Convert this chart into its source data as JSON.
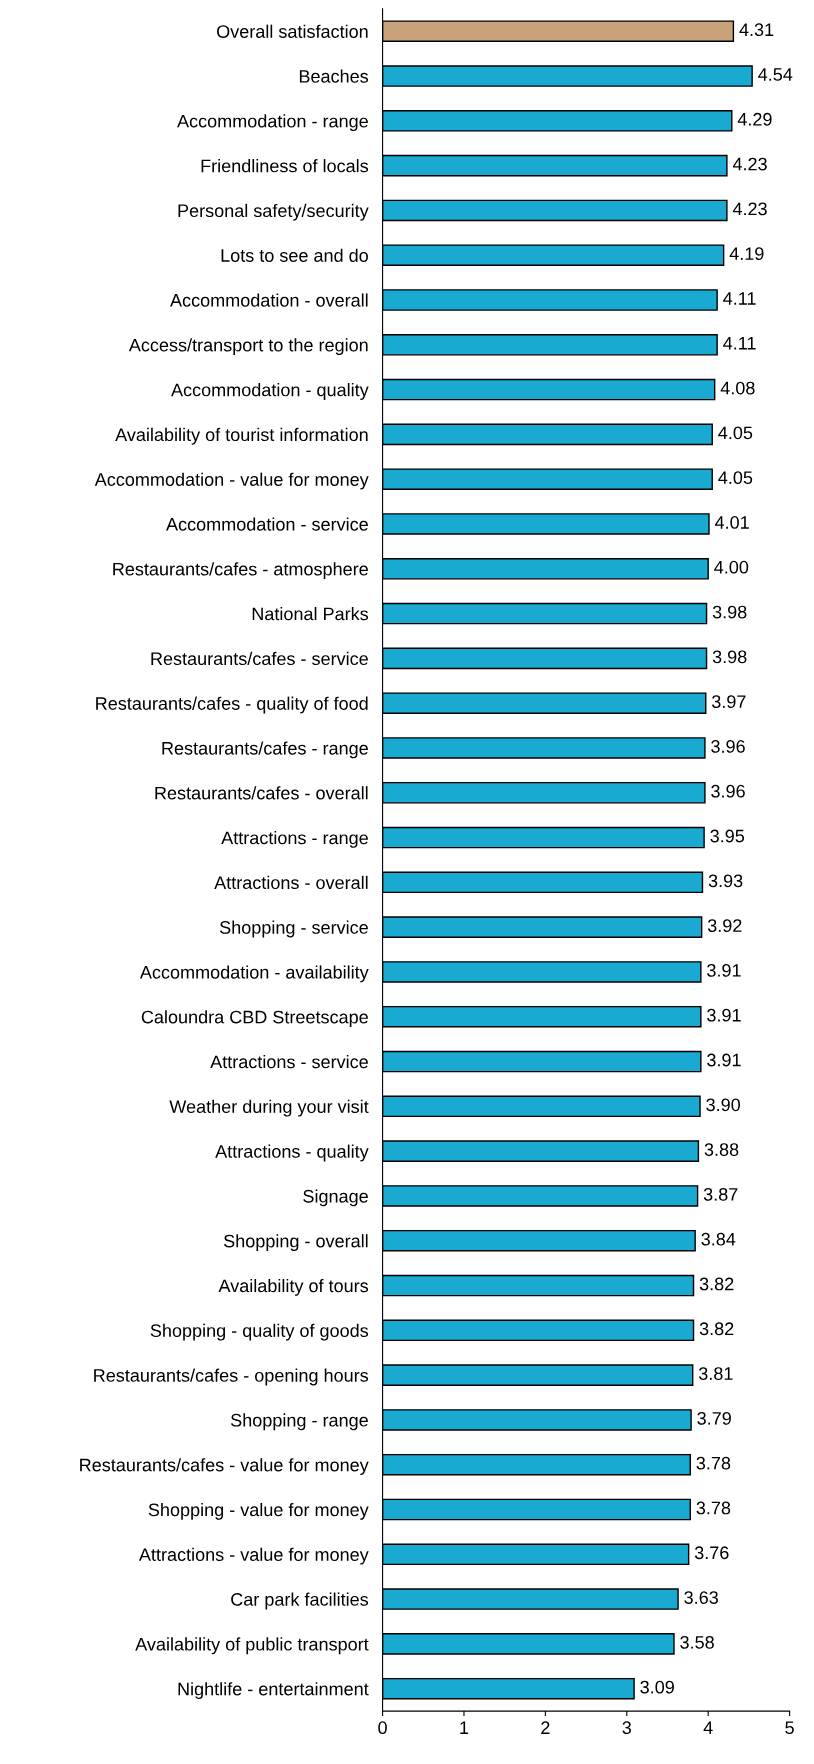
{
  "chart_data": {
    "type": "bar",
    "orientation": "horizontal",
    "categories": [
      "Overall satisfaction",
      "Beaches",
      "Accommodation - range",
      "Friendliness of locals",
      "Personal safety/security",
      "Lots to see and do",
      "Accommodation - overall",
      "Access/transport to the region",
      "Accommodation - quality",
      "Availability of tourist information",
      "Accommodation - value for money",
      "Accommodation - service",
      "Restaurants/cafes - atmosphere",
      "National Parks",
      "Restaurants/cafes - service",
      "Restaurants/cafes - quality of food",
      "Restaurants/cafes - range",
      "Restaurants/cafes - overall",
      "Attractions - range",
      "Attractions - overall",
      "Shopping - service",
      "Accommodation - availability",
      "Caloundra CBD Streetscape",
      "Attractions - service",
      "Weather during your visit",
      "Attractions - quality",
      "Signage",
      "Shopping - overall",
      "Availability of tours",
      "Shopping - quality of goods",
      "Restaurants/cafes - opening hours",
      "Shopping - range",
      "Restaurants/cafes - value for money",
      "Shopping - value for money",
      "Attractions - value for money",
      "Car park facilities",
      "Availability of public transport",
      "Nightlife - entertainment"
    ],
    "values": [
      4.31,
      4.54,
      4.29,
      4.23,
      4.23,
      4.19,
      4.11,
      4.11,
      4.08,
      4.05,
      4.05,
      4.01,
      4.0,
      3.98,
      3.98,
      3.97,
      3.96,
      3.96,
      3.95,
      3.93,
      3.92,
      3.91,
      3.91,
      3.91,
      3.9,
      3.88,
      3.87,
      3.84,
      3.82,
      3.82,
      3.81,
      3.79,
      3.78,
      3.78,
      3.76,
      3.63,
      3.58,
      3.09
    ],
    "value_labels": [
      "4.31",
      "4.54",
      "4.29",
      "4.23",
      "4.23",
      "4.19",
      "4.11",
      "4.11",
      "4.08",
      "4.05",
      "4.05",
      "4.01",
      "4.00",
      "3.98",
      "3.98",
      "3.97",
      "3.96",
      "3.96",
      "3.95",
      "3.93",
      "3.92",
      "3.91",
      "3.91",
      "3.91",
      "3.90",
      "3.88",
      "3.87",
      "3.84",
      "3.82",
      "3.82",
      "3.81",
      "3.79",
      "3.78",
      "3.78",
      "3.76",
      "3.63",
      "3.58",
      "3.09"
    ],
    "colors": [
      "#c8a27a",
      "#1aa9d0",
      "#1aa9d0",
      "#1aa9d0",
      "#1aa9d0",
      "#1aa9d0",
      "#1aa9d0",
      "#1aa9d0",
      "#1aa9d0",
      "#1aa9d0",
      "#1aa9d0",
      "#1aa9d0",
      "#1aa9d0",
      "#1aa9d0",
      "#1aa9d0",
      "#1aa9d0",
      "#1aa9d0",
      "#1aa9d0",
      "#1aa9d0",
      "#1aa9d0",
      "#1aa9d0",
      "#1aa9d0",
      "#1aa9d0",
      "#1aa9d0",
      "#1aa9d0",
      "#1aa9d0",
      "#1aa9d0",
      "#1aa9d0",
      "#1aa9d0",
      "#1aa9d0",
      "#1aa9d0",
      "#1aa9d0",
      "#1aa9d0",
      "#1aa9d0",
      "#1aa9d0",
      "#1aa9d0",
      "#1aa9d0",
      "#1aa9d0"
    ],
    "xlim": [
      0,
      5
    ],
    "xticks": [
      0,
      1,
      2,
      3,
      4,
      5
    ],
    "grid": false
  }
}
